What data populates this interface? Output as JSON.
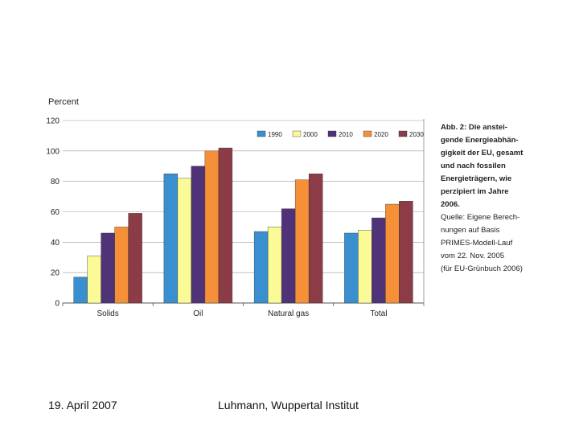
{
  "chart_data": {
    "type": "bar",
    "ylabel": "Percent",
    "ylim": [
      0,
      120
    ],
    "yticks": [
      0,
      20,
      40,
      60,
      80,
      100,
      120
    ],
    "categories": [
      "Solids",
      "Oil",
      "Natural gas",
      "Total"
    ],
    "legend_position": "top-right",
    "grid": "horizontal",
    "series": [
      {
        "name": "1990",
        "color": "#3a8fd0",
        "values": [
          17,
          85,
          47,
          46
        ]
      },
      {
        "name": "2000",
        "color": "#fafa96",
        "values": [
          31,
          82,
          50,
          48
        ]
      },
      {
        "name": "2010",
        "color": "#503278",
        "values": [
          46,
          90,
          62,
          56
        ]
      },
      {
        "name": "2020",
        "color": "#f59038",
        "values": [
          50,
          100,
          81,
          65
        ]
      },
      {
        "name": "2030",
        "color": "#8c3c46",
        "values": [
          59,
          102,
          85,
          67
        ]
      }
    ]
  },
  "caption": {
    "bold_lines": [
      "Abb. 2: Die anstei-",
      "gende Energieabhän-",
      "gigkeit der EU, gesamt",
      "und nach fossilen",
      "Energieträgern, wie",
      "perzipiert im Jahre",
      "2006."
    ],
    "lines": [
      "Quelle: Eigene Berech-",
      "nungen auf Basis",
      "PRIMES-Modell-Lauf",
      "vom 22. Nov. 2005",
      "(für EU-Grünbuch 2006)"
    ]
  },
  "footer": {
    "date": "19. April 2007",
    "author": "Luhmann,  Wuppertal Institut"
  }
}
